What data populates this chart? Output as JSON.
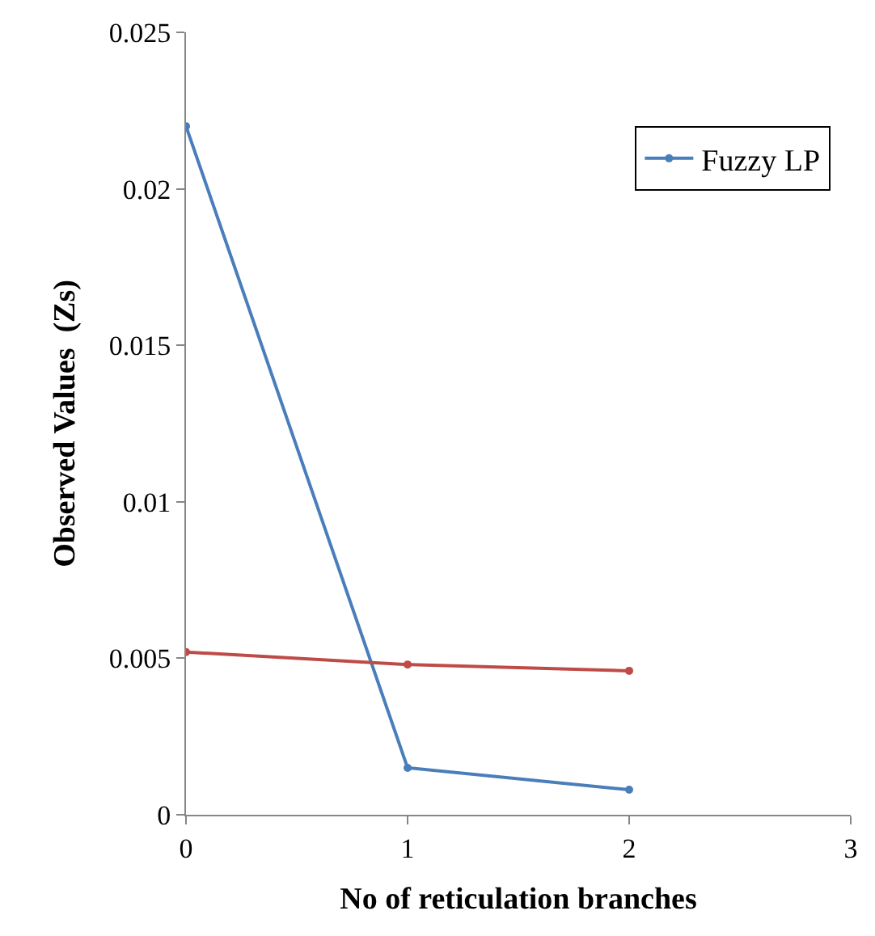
{
  "chart_data": {
    "type": "line",
    "xlabel": "No of reticulation branches",
    "ylabel": "Observed Values  (Zs)",
    "x": [
      0,
      1,
      2
    ],
    "series": [
      {
        "name": "Fuzzy LP",
        "color": "#4a7ebb",
        "values": [
          0.022,
          0.0015,
          0.0008
        ]
      },
      {
        "color": "#be4b48",
        "values": [
          0.0052,
          0.0048,
          0.0046
        ]
      }
    ],
    "xlim": [
      0,
      3
    ],
    "xticks": [
      0,
      1,
      2,
      3
    ],
    "ylim": [
      0,
      0.025
    ],
    "yticks": [
      0,
      0.005,
      0.01,
      0.015,
      0.02,
      0.025
    ],
    "legend": "top right",
    "marker": "circle",
    "line_style": "solid"
  }
}
